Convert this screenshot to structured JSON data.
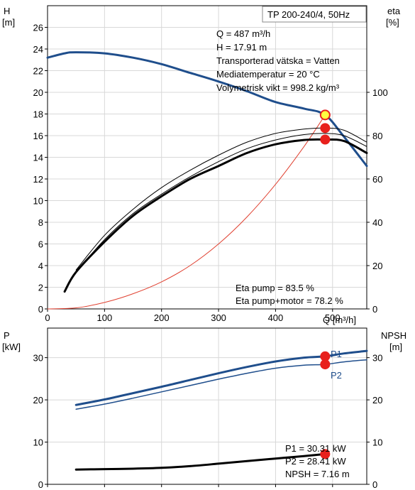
{
  "colors": {
    "head": "#1f4e8c",
    "power": "#1f4e8c",
    "eta": "#000000",
    "system": "#e04030",
    "duty_point": "#e8201c",
    "duty_fill": "#ffff40",
    "grid": "#d8d8d8"
  },
  "chart_data": [
    {
      "type": "line",
      "title": "TP 200-240/4, 50Hz",
      "left_axis": {
        "label_line1": "H",
        "label_line2": "[m]",
        "ylim": [
          0,
          28
        ],
        "ticks": [
          "0",
          "2",
          "4",
          "6",
          "8",
          "10",
          "12",
          "14",
          "16",
          "18",
          "20",
          "22",
          "24",
          "26"
        ]
      },
      "right_axis": {
        "label_line1": "eta",
        "label_line2": "[%]",
        "ylim": [
          0,
          140
        ],
        "ticks": [
          "0",
          "20",
          "40",
          "60",
          "80",
          "100"
        ]
      },
      "x_axis": {
        "label": "Q [m³/h]",
        "xlim": [
          0,
          560
        ],
        "ticks": [
          "0",
          "100",
          "200",
          "300",
          "400",
          "500"
        ]
      },
      "info": [
        "Q = 487 m³/h",
        "H = 17.91 m",
        "Transporterad vätska = Vatten",
        "Mediatemperatur = 20 °C",
        "Volymetrisk vikt = 998.2 kg/m³"
      ],
      "eta_info": [
        "Eta pump = 83.5 %",
        "Eta pump+motor = 78.2 %"
      ],
      "series": [
        {
          "key": "head",
          "axis": "left",
          "width": 3,
          "x": [
            0,
            30,
            50,
            100,
            150,
            200,
            250,
            300,
            350,
            400,
            450,
            487,
            520,
            560
          ],
          "y": [
            23.2,
            23.6,
            23.7,
            23.6,
            23.2,
            22.6,
            21.8,
            21.0,
            20.1,
            19.1,
            18.5,
            17.91,
            15.9,
            13.2
          ]
        },
        {
          "key": "system",
          "axis": "left",
          "width": 1,
          "x": [
            0,
            50,
            100,
            150,
            200,
            250,
            300,
            350,
            400,
            450,
            487
          ],
          "y": [
            0,
            0.1,
            0.6,
            1.4,
            2.5,
            4.0,
            6.0,
            8.5,
            11.5,
            15.0,
            17.91
          ]
        },
        {
          "key": "eta_outer",
          "axis": "right",
          "width": 1,
          "x": [
            50,
            100,
            150,
            200,
            250,
            300,
            350,
            400,
            450,
            487,
            520,
            560
          ],
          "y": [
            18,
            34,
            46,
            56,
            64,
            71,
            77,
            81,
            83,
            83.5,
            82.5,
            77
          ]
        },
        {
          "key": "eta_inner",
          "axis": "right",
          "width": 1,
          "x": [
            50,
            100,
            150,
            200,
            250,
            300,
            350,
            400,
            450,
            487,
            520,
            560
          ],
          "y": [
            17,
            32,
            44,
            53,
            61,
            68,
            74,
            78,
            80.5,
            81,
            80,
            75
          ]
        },
        {
          "key": "eta_motor",
          "axis": "right",
          "width": 3,
          "x": [
            30,
            50,
            100,
            150,
            200,
            250,
            300,
            350,
            400,
            450,
            487,
            520,
            560
          ],
          "y": [
            8,
            17,
            31,
            43,
            52,
            60,
            66,
            72,
            76,
            78,
            78.2,
            77.5,
            72
          ]
        }
      ],
      "duty_points": [
        {
          "axis": "left",
          "x": 487,
          "y": 17.91,
          "style": "hollow"
        },
        {
          "axis": "right",
          "x": 487,
          "y": 83.5,
          "style": "filled"
        },
        {
          "axis": "right",
          "x": 487,
          "y": 78.2,
          "style": "filled"
        }
      ]
    },
    {
      "type": "line",
      "left_axis": {
        "label_line1": "P",
        "label_line2": "[kW]",
        "ylim": [
          0,
          37
        ],
        "ticks": [
          "0",
          "10",
          "20",
          "30"
        ]
      },
      "right_axis": {
        "label_line1": "NPSH",
        "label_line2": "[m]",
        "ylim": [
          0,
          37
        ],
        "ticks": [
          "0",
          "10",
          "20",
          "30"
        ]
      },
      "x_axis": {
        "xlim": [
          0,
          560
        ]
      },
      "info": [
        "P1 = 30.31 kW",
        "P2 = 28.41 kW",
        "NPSH = 7.16 m"
      ],
      "series": [
        {
          "key": "p1",
          "axis": "left",
          "width": 3,
          "name": "P1",
          "x": [
            50,
            100,
            150,
            200,
            250,
            300,
            350,
            400,
            450,
            487,
            520,
            560
          ],
          "y": [
            18.8,
            20.1,
            21.6,
            23.1,
            24.7,
            26.3,
            27.8,
            29.1,
            30.0,
            30.31,
            31.0,
            31.6
          ]
        },
        {
          "key": "p2",
          "axis": "left",
          "width": 1.5,
          "name": "P2",
          "x": [
            50,
            100,
            150,
            200,
            250,
            300,
            350,
            400,
            450,
            487,
            520,
            560
          ],
          "y": [
            17.8,
            19.0,
            20.4,
            21.9,
            23.4,
            24.9,
            26.3,
            27.5,
            28.2,
            28.41,
            29.0,
            29.5
          ]
        },
        {
          "key": "npsh",
          "axis": "right",
          "width": 3,
          "x": [
            50,
            100,
            150,
            200,
            250,
            300,
            350,
            400,
            450,
            487
          ],
          "y": [
            3.5,
            3.6,
            3.7,
            3.9,
            4.3,
            4.9,
            5.5,
            6.1,
            6.7,
            7.16
          ]
        }
      ],
      "duty_points": [
        {
          "axis": "left",
          "x": 487,
          "y": 30.31,
          "style": "filled"
        },
        {
          "axis": "left",
          "x": 487,
          "y": 28.41,
          "style": "filled"
        },
        {
          "axis": "right",
          "x": 487,
          "y": 7.16,
          "style": "filled"
        }
      ]
    }
  ]
}
